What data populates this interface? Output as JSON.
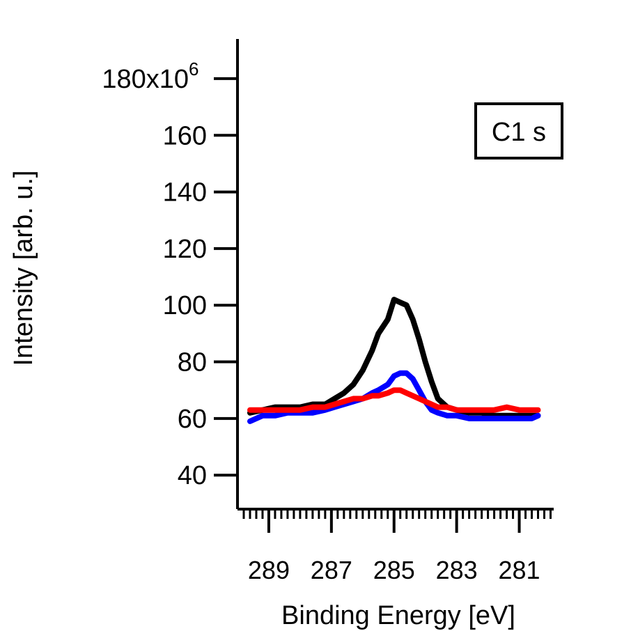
{
  "chart_data": {
    "type": "line",
    "xlabel": "Binding Energy [eV]",
    "ylabel": "Intensity [arb. u.]",
    "x_reversed": true,
    "xlim": [
      290.0,
      279.9
    ],
    "ylim": [
      28,
      194
    ],
    "y_ticks": [
      {
        "value": 40,
        "label": "40"
      },
      {
        "value": 60,
        "label": "60"
      },
      {
        "value": 80,
        "label": "80"
      },
      {
        "value": 100,
        "label": "100"
      },
      {
        "value": 120,
        "label": "120"
      },
      {
        "value": 140,
        "label": "140"
      },
      {
        "value": 160,
        "label": "160"
      },
      {
        "value": 180,
        "label": "180x10"
      }
    ],
    "y_exponent": "6",
    "x_ticks": [
      {
        "value": 289,
        "label": "289"
      },
      {
        "value": 287,
        "label": "287"
      },
      {
        "value": 285,
        "label": "285"
      },
      {
        "value": 283,
        "label": "283"
      },
      {
        "value": 281,
        "label": "281"
      }
    ],
    "x_minor_step": 0.2,
    "annotation": {
      "text": "C1 s",
      "position": "top-right"
    },
    "series": [
      {
        "color": "#000000",
        "x": [
          289.6,
          289.2,
          288.8,
          288.4,
          288.0,
          287.6,
          287.2,
          286.9,
          286.6,
          286.3,
          286.0,
          285.7,
          285.5,
          285.2,
          285.0,
          284.8,
          284.6,
          284.4,
          284.2,
          284.0,
          283.8,
          283.6,
          283.3,
          283.0,
          282.6,
          282.2,
          281.8,
          281.4,
          281.0,
          280.6,
          280.4
        ],
        "values": [
          62,
          63,
          64,
          64,
          64,
          65,
          65,
          67,
          69,
          72,
          77,
          84,
          90,
          95,
          102,
          101,
          100,
          95,
          88,
          80,
          73,
          67,
          64,
          63,
          62,
          62,
          61,
          61,
          61,
          61,
          61
        ]
      },
      {
        "color": "#0000ff",
        "x": [
          289.6,
          289.2,
          288.8,
          288.4,
          288.0,
          287.6,
          287.2,
          286.9,
          286.6,
          286.3,
          286.0,
          285.7,
          285.5,
          285.2,
          285.0,
          284.8,
          284.6,
          284.4,
          284.2,
          284.0,
          283.8,
          283.6,
          283.3,
          283.0,
          282.6,
          282.2,
          281.8,
          281.4,
          281.0,
          280.6,
          280.4
        ],
        "values": [
          59,
          61,
          61,
          62,
          62,
          62,
          63,
          64,
          65,
          66,
          67,
          69,
          70,
          72,
          75,
          76,
          76,
          74,
          70,
          66,
          63,
          62,
          61,
          61,
          60,
          60,
          60,
          60,
          60,
          60,
          61
        ]
      },
      {
        "color": "#ff0000",
        "x": [
          289.6,
          289.2,
          288.8,
          288.4,
          288.0,
          287.6,
          287.2,
          286.9,
          286.6,
          286.3,
          286.0,
          285.7,
          285.5,
          285.2,
          285.0,
          284.8,
          284.6,
          284.4,
          284.2,
          284.0,
          283.8,
          283.6,
          283.3,
          283.0,
          282.6,
          282.2,
          281.8,
          281.4,
          281.0,
          280.6,
          280.4
        ],
        "values": [
          63,
          63,
          63,
          63,
          63,
          64,
          64,
          65,
          66,
          67,
          67,
          68,
          68,
          69,
          70,
          70,
          69,
          68,
          67,
          66,
          65,
          64,
          64,
          63,
          63,
          63,
          63,
          64,
          63,
          63,
          63
        ]
      }
    ]
  }
}
